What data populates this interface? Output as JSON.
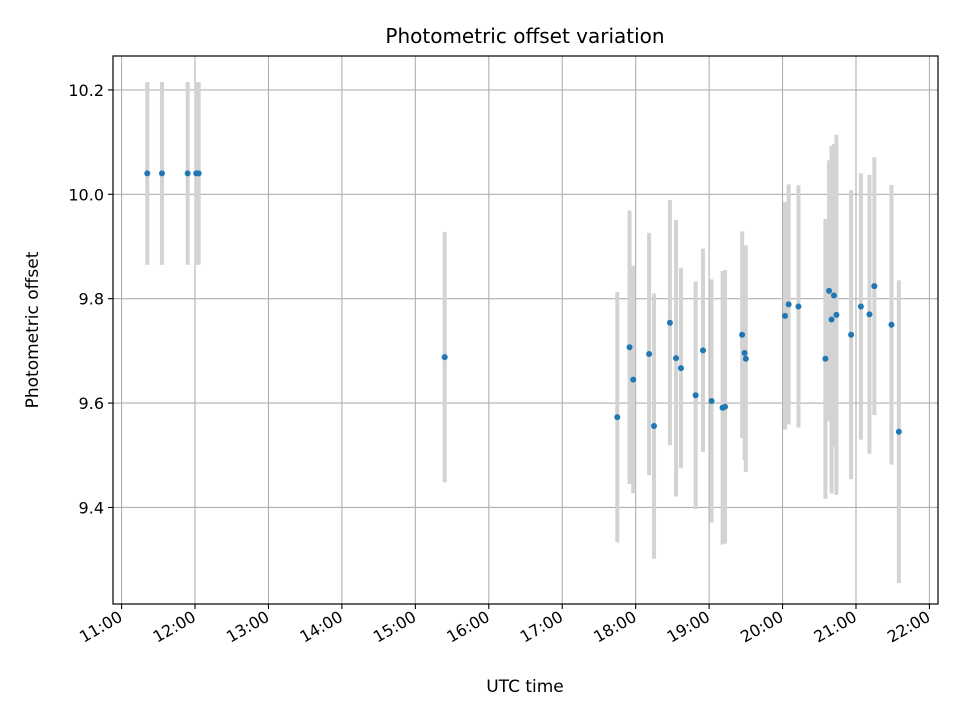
{
  "chart_data": {
    "type": "scatter",
    "title": "Photometric offset variation",
    "xlabel": "UTC time",
    "ylabel": "Photometric offset",
    "x_unit": "UTC time of day",
    "xlim": [
      "10:53",
      "22:07"
    ],
    "ylim": [
      9.215,
      10.265
    ],
    "x_ticks": [
      "11:00",
      "12:00",
      "13:00",
      "14:00",
      "15:00",
      "16:00",
      "17:00",
      "18:00",
      "19:00",
      "20:00",
      "21:00",
      "22:00"
    ],
    "y_ticks": [
      9.4,
      9.6,
      9.8,
      10.0,
      10.2
    ],
    "y_tick_labels": [
      "9.4",
      "9.6",
      "9.8",
      "10.0",
      "10.2"
    ],
    "grid": true,
    "legend": false,
    "colors": {
      "point": "#1f77b4",
      "errorbar": "#d3d3d3",
      "grid": "#b0b0b0"
    },
    "series": [
      {
        "points": [
          {
            "x": "11:21",
            "y": 10.04,
            "err": 0.175
          },
          {
            "x": "11:33",
            "y": 10.04,
            "err": 0.175
          },
          {
            "x": "11:54",
            "y": 10.04,
            "err": 0.175
          },
          {
            "x": "12:01",
            "y": 10.04,
            "err": 0.175
          },
          {
            "x": "12:03",
            "y": 10.04,
            "err": 0.175
          },
          {
            "x": "15:24",
            "y": 9.688,
            "err": 0.24
          },
          {
            "x": "17:45",
            "y": 9.573,
            "err": 0.24
          },
          {
            "x": "17:55",
            "y": 9.707,
            "err": 0.262
          },
          {
            "x": "17:58",
            "y": 9.645,
            "err": 0.218
          },
          {
            "x": "18:11",
            "y": 9.694,
            "err": 0.232
          },
          {
            "x": "18:15",
            "y": 9.556,
            "err": 0.254
          },
          {
            "x": "18:28",
            "y": 9.754,
            "err": 0.235
          },
          {
            "x": "18:33",
            "y": 9.686,
            "err": 0.265
          },
          {
            "x": "18:37",
            "y": 9.667,
            "err": 0.192
          },
          {
            "x": "18:49",
            "y": 9.615,
            "err": 0.218
          },
          {
            "x": "18:55",
            "y": 9.701,
            "err": 0.195
          },
          {
            "x": "19:02",
            "y": 9.604,
            "err": 0.233
          },
          {
            "x": "19:11",
            "y": 9.591,
            "err": 0.262
          },
          {
            "x": "19:13",
            "y": 9.593,
            "err": 0.262
          },
          {
            "x": "19:27",
            "y": 9.731,
            "err": 0.198
          },
          {
            "x": "19:29",
            "y": 9.696,
            "err": 0.205
          },
          {
            "x": "19:30",
            "y": 9.685,
            "err": 0.217
          },
          {
            "x": "20:02",
            "y": 9.767,
            "err": 0.218
          },
          {
            "x": "20:05",
            "y": 9.789,
            "err": 0.23
          },
          {
            "x": "20:13",
            "y": 9.785,
            "err": 0.232
          },
          {
            "x": "20:35",
            "y": 9.685,
            "err": 0.268
          },
          {
            "x": "20:38",
            "y": 9.815,
            "err": 0.25
          },
          {
            "x": "20:40",
            "y": 9.76,
            "err": 0.333
          },
          {
            "x": "20:42",
            "y": 9.806,
            "err": 0.29
          },
          {
            "x": "20:44",
            "y": 9.769,
            "err": 0.345
          },
          {
            "x": "20:56",
            "y": 9.731,
            "err": 0.277
          },
          {
            "x": "21:04",
            "y": 9.785,
            "err": 0.255
          },
          {
            "x": "21:11",
            "y": 9.77,
            "err": 0.267
          },
          {
            "x": "21:15",
            "y": 9.824,
            "err": 0.247
          },
          {
            "x": "21:29",
            "y": 9.75,
            "err": 0.268
          },
          {
            "x": "21:35",
            "y": 9.545,
            "err": 0.29
          }
        ]
      }
    ]
  }
}
